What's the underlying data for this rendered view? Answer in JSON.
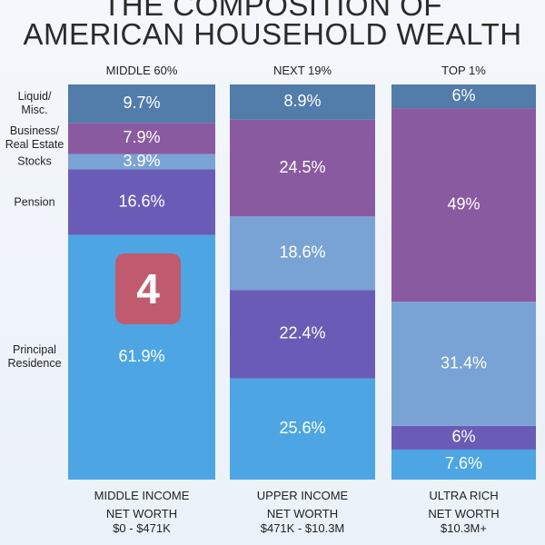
{
  "chart_data": {
    "type": "stacked_bar",
    "title_lines": [
      "THE COMPOSITION OF",
      "AMERICAN HOUSEHOLD WEALTH"
    ],
    "categories": [
      "MIDDLE 60%",
      "NEXT 19%",
      "TOP 1%"
    ],
    "group_names": [
      "MIDDLE INCOME",
      "UPPER INCOME",
      "ULTRA RICH"
    ],
    "net_worth": [
      "NET WORTH\n$0 - $471K",
      "NET WORTH\n$471K - $10.3M",
      "NET WORTH\n$10.3M+"
    ],
    "ylim": [
      0,
      100
    ],
    "series": [
      {
        "name": "Principal\nResidence",
        "color": "#4da6e3",
        "values": [
          61.9,
          25.6,
          7.6
        ],
        "value_labels": [
          "61.9%",
          "25.6%",
          "7.6%"
        ]
      },
      {
        "name": "Pension",
        "color": "#6a5cb6",
        "values": [
          16.6,
          22.4,
          6
        ],
        "value_labels": [
          "16.6%",
          "22.4%",
          "6%"
        ]
      },
      {
        "name": "Stocks",
        "color": "#7aa3d5",
        "values": [
          3.9,
          18.6,
          31.4
        ],
        "value_labels": [
          "3.9%",
          "18.6%",
          "31.4%"
        ]
      },
      {
        "name": "Business/\nReal Estate",
        "color": "#8a5aa0",
        "values": [
          7.9,
          24.5,
          49
        ],
        "value_labels": [
          "7.9%",
          "24.5%",
          "49%"
        ]
      },
      {
        "name": "Liquid/\nMisc.",
        "color": "#527caa",
        "values": [
          9.7,
          8.9,
          6
        ],
        "value_labels": [
          "9.7%",
          "8.9%",
          "6%"
        ]
      }
    ],
    "badge": "4"
  }
}
